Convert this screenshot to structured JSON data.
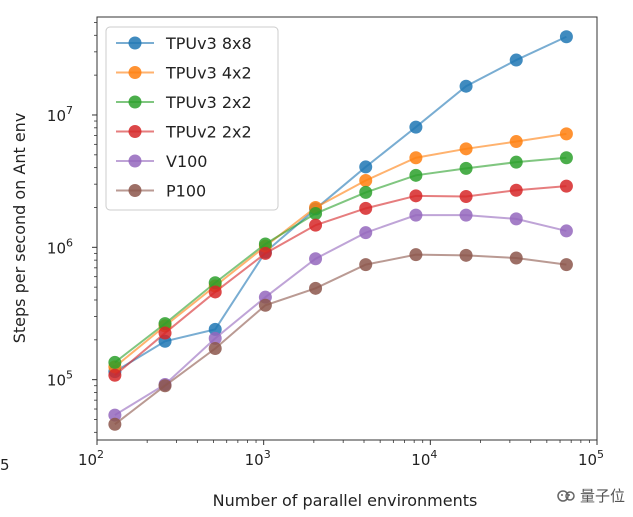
{
  "chart_data": {
    "type": "line",
    "xscale": "log",
    "yscale": "log",
    "xlabel": "Number of parallel environments",
    "ylabel": "Steps per second on Ant env",
    "xlim": [
      100,
      100000
    ],
    "ylim": [
      35000,
      55000000
    ],
    "xticks": [
      {
        "value": 100,
        "base": "10",
        "exp": "2"
      },
      {
        "value": 1000,
        "base": "10",
        "exp": "3"
      },
      {
        "value": 10000,
        "base": "10",
        "exp": "4"
      },
      {
        "value": 100000,
        "base": "10",
        "exp": "5"
      }
    ],
    "yticks": [
      {
        "value": 100000,
        "base": "10",
        "exp": "5"
      },
      {
        "value": 1000000,
        "base": "10",
        "exp": "6"
      },
      {
        "value": 10000000,
        "base": "10",
        "exp": "7"
      }
    ],
    "x": [
      128,
      256,
      512,
      1024,
      2048,
      4096,
      8192,
      16384,
      32768,
      65536
    ],
    "series": [
      {
        "name": "TPUv3 8x8",
        "color": "#1f77b4",
        "values": [
          115000,
          195000,
          240000,
          920000,
          1950000,
          4050000,
          8100000,
          16500000,
          26000000,
          39000000
        ]
      },
      {
        "name": "TPUv3 4x2",
        "color": "#ff7f0e",
        "values": [
          125000,
          255000,
          510000,
          1020000,
          2000000,
          3200000,
          4750000,
          5550000,
          6300000,
          7200000
        ]
      },
      {
        "name": "TPUv3 2x2",
        "color": "#2ca02c",
        "values": [
          135000,
          265000,
          540000,
          1060000,
          1800000,
          2600000,
          3500000,
          3950000,
          4400000,
          4750000
        ]
      },
      {
        "name": "TPUv2 2x2",
        "color": "#d62728",
        "values": [
          108000,
          225000,
          460000,
          900000,
          1470000,
          1970000,
          2450000,
          2420000,
          2700000,
          2900000
        ]
      },
      {
        "name": "V100",
        "color": "#9467bd",
        "values": [
          54000,
          92000,
          205000,
          420000,
          820000,
          1290000,
          1750000,
          1750000,
          1640000,
          1330000
        ]
      },
      {
        "name": "P100",
        "color": "#8c564b",
        "values": [
          46000,
          90000,
          172000,
          365000,
          490000,
          740000,
          880000,
          870000,
          830000,
          740000
        ]
      }
    ],
    "legend_position": "top-left"
  },
  "stray_tick_label": "5",
  "watermark": {
    "text": "量子位"
  }
}
